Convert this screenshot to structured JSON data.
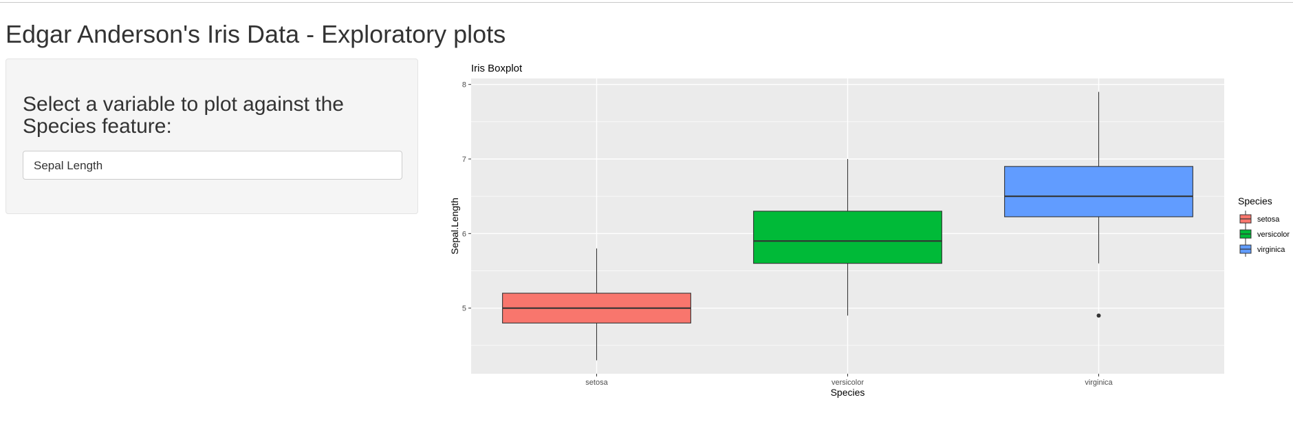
{
  "page": {
    "title": "Edgar Anderson's Iris Data - Exploratory plots"
  },
  "sidebar": {
    "label": "Select a variable to plot against the Species feature:",
    "select": {
      "value": "Sepal Length"
    }
  },
  "colors": {
    "setosa": "#F8766D",
    "versicolor": "#00BA38",
    "virginica": "#619CFF",
    "panel_background": "#EBEBEB",
    "grid": "#FFFFFF"
  },
  "chart_data": {
    "type": "boxplot",
    "title": "Iris Boxplot",
    "xlabel": "Species",
    "ylabel": "Sepal.Length",
    "categories": [
      "setosa",
      "versicolor",
      "virginica"
    ],
    "ylim": [
      4.12,
      8.08
    ],
    "yticks": [
      5,
      6,
      7,
      8
    ],
    "grid": true,
    "legend": {
      "title": "Species",
      "position": "right",
      "entries": [
        "setosa",
        "versicolor",
        "virginica"
      ]
    },
    "boxes": [
      {
        "name": "setosa",
        "whisker_low": 4.3,
        "q1": 4.8,
        "median": 5.0,
        "q3": 5.2,
        "whisker_high": 5.8,
        "outliers": [],
        "color": "#F8766D"
      },
      {
        "name": "versicolor",
        "whisker_low": 4.9,
        "q1": 5.6,
        "median": 5.9,
        "q3": 6.3,
        "whisker_high": 7.0,
        "outliers": [],
        "color": "#00BA38"
      },
      {
        "name": "virginica",
        "whisker_low": 5.6,
        "q1": 6.225,
        "median": 6.5,
        "q3": 6.9,
        "whisker_high": 7.9,
        "outliers": [
          4.9
        ],
        "color": "#619CFF"
      }
    ]
  }
}
